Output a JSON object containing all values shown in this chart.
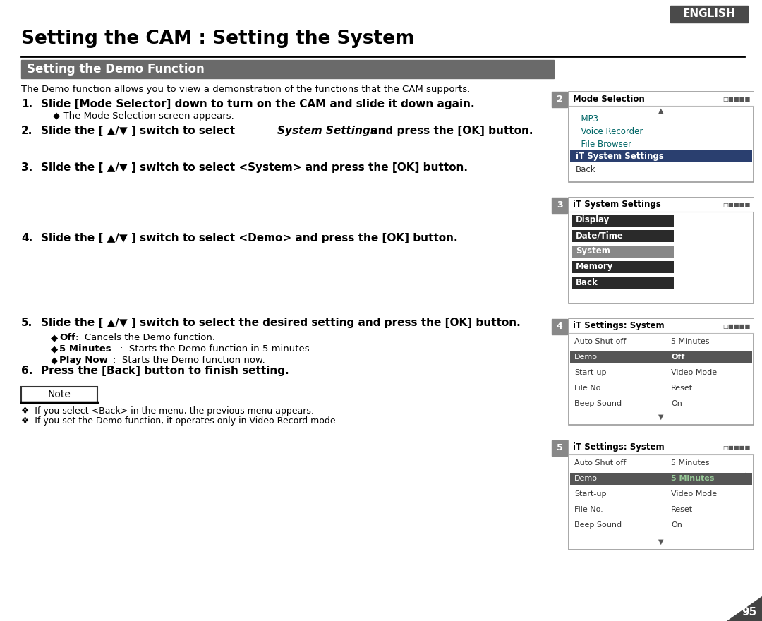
{
  "page_bg": "#ffffff",
  "english_label": "ENGLISH",
  "title": "Setting the CAM : Setting the System",
  "section_title": "Setting the Demo Function",
  "intro_text": "The Demo function allows you to view a demonstration of the functions that the CAM supports.",
  "note_text": "Note",
  "note_items": [
    "❖  If you select <Back> in the menu, the previous menu appears.",
    "❖  If you set the Demo function, it operates only in Video Record mode."
  ],
  "page_num": "95",
  "screen2_title": "Mode Selection",
  "screen2_items": [
    {
      "text": "  MP3",
      "hl": false,
      "teal": true,
      "icon": "♪"
    },
    {
      "text": "  Voice Recorder",
      "hl": false,
      "teal": true,
      "icon": "★"
    },
    {
      "text": "  File Browser",
      "hl": false,
      "teal": true,
      "icon": "▤"
    },
    {
      "text": "iT System Settings",
      "hl": true,
      "teal": false,
      "icon": ""
    },
    {
      "text": "Back",
      "hl": false,
      "teal": false,
      "icon": ""
    }
  ],
  "screen3_title": "iT System Settings",
  "screen3_items": [
    {
      "text": "Display",
      "hl": false,
      "dark": true
    },
    {
      "text": "Date/Time",
      "hl": false,
      "dark": true
    },
    {
      "text": "System",
      "hl": true,
      "dark": false
    },
    {
      "text": "Memory",
      "hl": false,
      "dark": true
    },
    {
      "text": "Back",
      "hl": false,
      "dark": true
    }
  ],
  "screen4_title": "iT Settings: System",
  "screen4_rows": [
    {
      "label": "Auto Shut off",
      "value": "5 Minutes",
      "hl": false
    },
    {
      "label": "Demo",
      "value": "Off",
      "hl": true
    },
    {
      "label": "Start-up",
      "value": "Video Mode",
      "hl": false
    },
    {
      "label": "File No.",
      "value": "Reset",
      "hl": false
    },
    {
      "label": "Beep Sound",
      "value": "On",
      "hl": false
    }
  ],
  "screen5_title": "iT Settings: System",
  "screen5_rows": [
    {
      "label": "Auto Shut off",
      "value": "5 Minutes",
      "hl": false
    },
    {
      "label": "Demo",
      "value": "5 Minutes",
      "hl": true
    },
    {
      "label": "Start-up",
      "value": "Video Mode",
      "hl": false
    },
    {
      "label": "File No.",
      "value": "Reset",
      "hl": false
    },
    {
      "label": "Beep Sound",
      "value": "On",
      "hl": false
    }
  ],
  "colors": {
    "dark_bg": "#4a4a4a",
    "section_bg": "#6a6a6a",
    "highlight_navy": "#2a3f6f",
    "highlight_gray": "#888888",
    "dark_row": "#333333",
    "teal": "#006666",
    "border": "#aaaaaa",
    "panel_title_bg": "#e8e8e8",
    "demo_hl": "#555555",
    "page_num_bg": "#444444"
  }
}
